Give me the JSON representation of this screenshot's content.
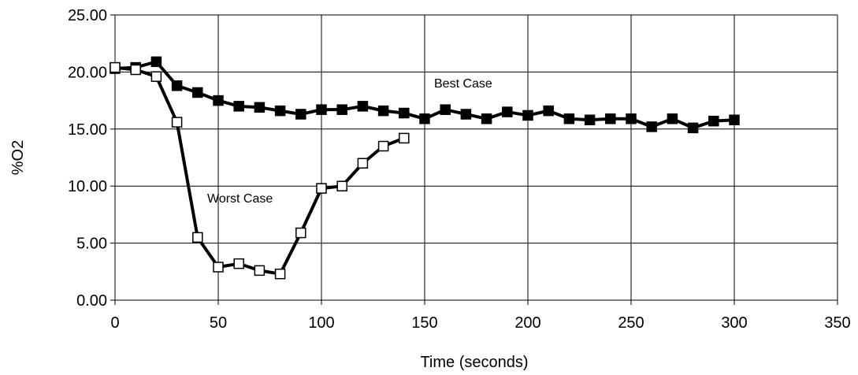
{
  "chart_data": {
    "type": "line",
    "title": "",
    "xlabel": "Time (seconds)",
    "ylabel": "%O2",
    "xlim": [
      0,
      350
    ],
    "ylim": [
      0,
      25
    ],
    "x_ticks": [
      "0",
      "50",
      "100",
      "150",
      "200",
      "250",
      "300",
      "350"
    ],
    "y_ticks": [
      "0.00",
      "5.00",
      "10.00",
      "15.00",
      "20.00",
      "25.00"
    ],
    "grid": true,
    "annotations": {
      "best": "Best Case",
      "worst": "Worst Case"
    },
    "series": [
      {
        "key": "best",
        "marker": "filled-square",
        "color": "#000000",
        "x": [
          0,
          10,
          20,
          30,
          40,
          50,
          60,
          70,
          80,
          90,
          100,
          110,
          120,
          130,
          140,
          150,
          160,
          170,
          180,
          190,
          200,
          210,
          220,
          230,
          240,
          250,
          260,
          270,
          280,
          290,
          300
        ],
        "y": [
          20.3,
          20.4,
          20.9,
          18.8,
          18.2,
          17.5,
          17.0,
          16.9,
          16.6,
          16.3,
          16.7,
          16.7,
          17.0,
          16.6,
          16.4,
          15.9,
          16.7,
          16.3,
          15.9,
          16.5,
          16.2,
          16.6,
          15.9,
          15.8,
          15.9,
          15.9,
          15.2,
          15.9,
          15.1,
          15.7,
          15.8
        ]
      },
      {
        "key": "worst",
        "marker": "hollow-square",
        "color": "#000000",
        "x": [
          0,
          10,
          20,
          30,
          40,
          50,
          60,
          70,
          80,
          90,
          100,
          110,
          120,
          130,
          140
        ],
        "y": [
          20.4,
          20.2,
          19.6,
          15.6,
          5.5,
          2.9,
          3.2,
          2.6,
          2.3,
          5.9,
          9.8,
          10.0,
          12.0,
          13.5,
          14.2
        ]
      }
    ]
  }
}
